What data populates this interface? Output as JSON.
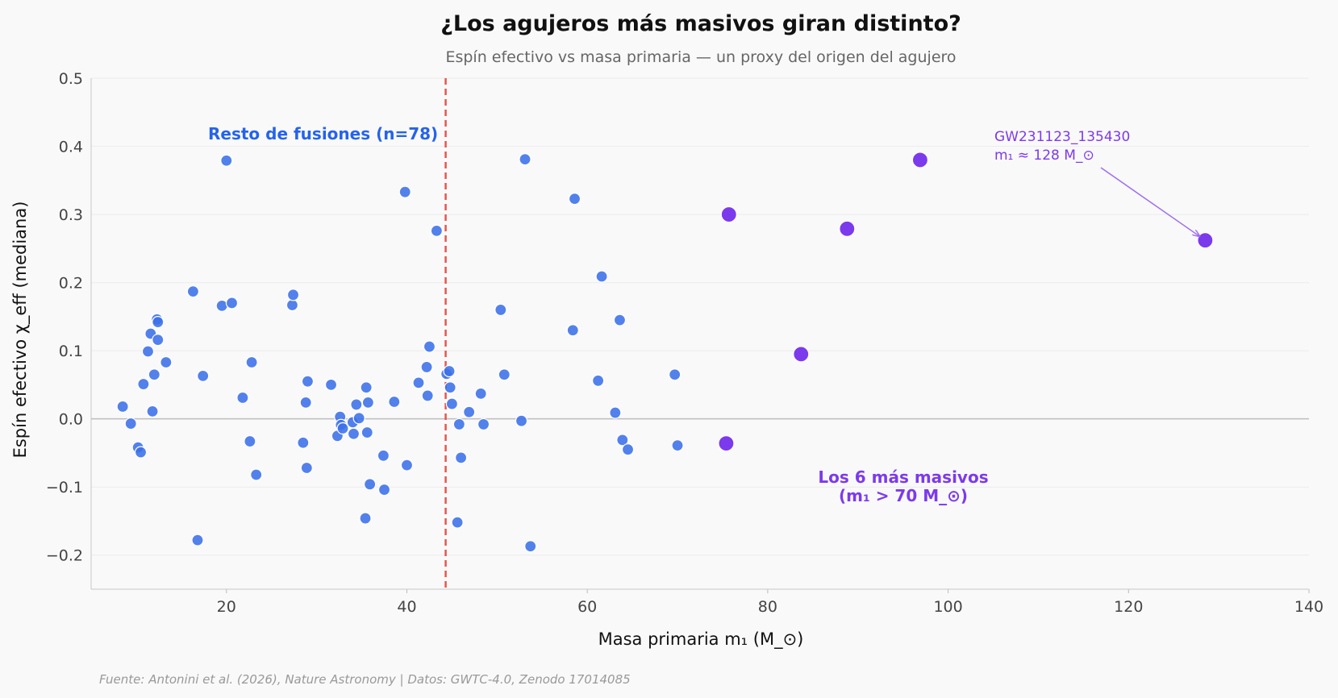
{
  "chart_data": {
    "type": "scatter",
    "title": "¿Los agujeros más masivos giran distinto?",
    "subtitle": "Espín efectivo vs masa primaria — un proxy del origen del agujero",
    "xlabel": "Masa primaria m₁ (M_⊙)",
    "ylabel": "Espín efectivo χ_eff (mediana)",
    "xlim": [
      5,
      140
    ],
    "ylim": [
      -0.25,
      0.5
    ],
    "xticks": [
      20,
      40,
      60,
      80,
      100,
      120,
      140
    ],
    "yticks": [
      -0.2,
      -0.1,
      0.0,
      0.1,
      0.2,
      0.3,
      0.4,
      0.5
    ],
    "xtick_labels": [
      "20",
      "40",
      "60",
      "80",
      "100",
      "120",
      "140"
    ],
    "ytick_labels": [
      "−0.2",
      "−0.1",
      "0.0",
      "0.1",
      "0.2",
      "0.3",
      "0.4",
      "0.5"
    ],
    "grid": "horizontal",
    "reference_lines": {
      "vertical_x": 44.3,
      "horizontal_y": 0.0
    },
    "colors": {
      "rest": "#3b6fe8",
      "massive": "#7c3aed",
      "vline": "#e5574f"
    },
    "series": [
      {
        "points": [
          [
            8.5,
            0.018
          ],
          [
            9.4,
            -0.007
          ],
          [
            10.2,
            -0.042
          ],
          [
            10.5,
            -0.049
          ],
          [
            10.8,
            0.051
          ],
          [
            11.3,
            0.099
          ],
          [
            11.6,
            0.125
          ],
          [
            11.8,
            0.011
          ],
          [
            12.0,
            0.065
          ],
          [
            12.3,
            0.146
          ],
          [
            12.4,
            0.142
          ],
          [
            12.4,
            0.116
          ],
          [
            13.3,
            0.083
          ],
          [
            16.3,
            0.187
          ],
          [
            16.8,
            -0.178
          ],
          [
            17.4,
            0.063
          ],
          [
            19.5,
            0.166
          ],
          [
            20.0,
            0.379
          ],
          [
            20.6,
            0.17
          ],
          [
            21.8,
            0.031
          ],
          [
            22.6,
            -0.033
          ],
          [
            22.8,
            0.083
          ],
          [
            23.3,
            -0.082
          ],
          [
            27.3,
            0.167
          ],
          [
            27.4,
            0.182
          ],
          [
            28.5,
            -0.035
          ],
          [
            28.8,
            0.024
          ],
          [
            28.9,
            -0.072
          ],
          [
            29.0,
            0.055
          ],
          [
            31.6,
            0.05
          ],
          [
            32.3,
            -0.025
          ],
          [
            32.6,
            0.003
          ],
          [
            32.7,
            -0.009
          ],
          [
            32.9,
            -0.014
          ],
          [
            34.0,
            -0.005
          ],
          [
            34.1,
            -0.022
          ],
          [
            34.4,
            0.021
          ],
          [
            34.7,
            0.001
          ],
          [
            35.4,
            -0.146
          ],
          [
            35.5,
            0.046
          ],
          [
            35.6,
            -0.02
          ],
          [
            35.7,
            0.024
          ],
          [
            35.9,
            -0.096
          ],
          [
            37.4,
            -0.054
          ],
          [
            37.5,
            -0.104
          ],
          [
            38.6,
            0.025
          ],
          [
            39.8,
            0.333
          ],
          [
            40.0,
            -0.068
          ],
          [
            41.3,
            0.053
          ],
          [
            42.2,
            0.076
          ],
          [
            42.3,
            0.034
          ],
          [
            42.5,
            0.106
          ],
          [
            43.3,
            0.276
          ],
          [
            44.4,
            0.066
          ],
          [
            44.7,
            0.07
          ],
          [
            44.8,
            0.046
          ],
          [
            45.0,
            0.022
          ],
          [
            45.6,
            -0.152
          ],
          [
            45.8,
            -0.008
          ],
          [
            46.0,
            -0.057
          ],
          [
            46.9,
            0.01
          ],
          [
            48.2,
            0.037
          ],
          [
            48.5,
            -0.008
          ],
          [
            50.4,
            0.16
          ],
          [
            50.8,
            0.065
          ],
          [
            52.7,
            -0.003
          ],
          [
            53.1,
            0.381
          ],
          [
            53.7,
            -0.187
          ],
          [
            58.4,
            0.13
          ],
          [
            58.6,
            0.323
          ],
          [
            61.2,
            0.056
          ],
          [
            61.6,
            0.209
          ],
          [
            63.1,
            0.009
          ],
          [
            63.6,
            0.145
          ],
          [
            63.9,
            -0.031
          ],
          [
            64.5,
            -0.045
          ],
          [
            69.7,
            0.065
          ],
          [
            70.0,
            -0.039
          ]
        ]
      },
      {
        "points": [
          [
            75.7,
            0.3
          ],
          [
            75.4,
            -0.036
          ],
          [
            83.7,
            0.095
          ],
          [
            88.8,
            0.279
          ],
          [
            96.9,
            0.38
          ],
          [
            128.5,
            0.262
          ]
        ]
      }
    ],
    "annotations": {
      "rest_label": "Resto de fusiones (n=78)",
      "massive_label_line1": "Los 6 más masivos",
      "massive_label_line2": "(m₁ > 70 M_⊙)",
      "callout_line1": "GW231123_135430",
      "callout_line2": "m₁ ≈ 128 M_⊙",
      "callout_point": [
        128.5,
        0.262
      ]
    },
    "source": "Fuente: Antonini et al. (2026), Nature Astronomy | Datos: GWTC-4.0, Zenodo 17014085"
  }
}
